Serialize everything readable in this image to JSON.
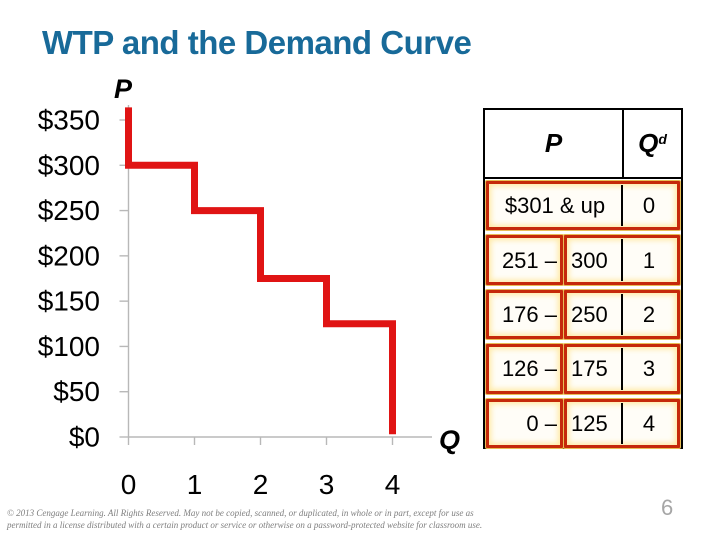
{
  "slide": {
    "title": "WTP and the Demand Curve",
    "page_number": "6",
    "footer_line1": "© 2013 Cengage Learning. All Rights Reserved. May not be copied, scanned, or duplicated, in whole or in part, except for use as",
    "footer_line2": "permitted in a license distributed with a certain product or service or otherwise on a password-protected website for classroom use."
  },
  "chart_data": {
    "type": "line",
    "subtype": "step-demand-curve",
    "x_axis_label": "Q",
    "y_axis_label": "P",
    "x_ticks": [
      0,
      1,
      2,
      3,
      4
    ],
    "y_ticks": [
      {
        "label": "$350",
        "value": 350
      },
      {
        "label": "$300",
        "value": 300
      },
      {
        "label": "$250",
        "value": 250
      },
      {
        "label": "$200",
        "value": 200
      },
      {
        "label": "$150",
        "value": 150
      },
      {
        "label": "$100",
        "value": 100
      },
      {
        "label": "$50",
        "value": 50
      },
      {
        "label": "$0",
        "value": 0
      }
    ],
    "xlim": [
      0,
      4.6
    ],
    "ylim": [
      0,
      375
    ],
    "grid": false,
    "legend": false,
    "series": [
      {
        "name": "demand-steps",
        "color": "#e01414",
        "points": [
          [
            0,
            364
          ],
          [
            0,
            300
          ],
          [
            1,
            300
          ],
          [
            1,
            250
          ],
          [
            2,
            250
          ],
          [
            2,
            175
          ],
          [
            3,
            175
          ],
          [
            3,
            125
          ],
          [
            4,
            125
          ],
          [
            4,
            3
          ]
        ]
      }
    ]
  },
  "table": {
    "headers": {
      "p": "P",
      "q_base": "Q",
      "q_sup": "d"
    },
    "rows": [
      {
        "p": "$301 & up",
        "qd": "0"
      },
      {
        "p_low": "251 –",
        "p_high": "300",
        "qd": "1"
      },
      {
        "p_low": "176 –",
        "p_high": "250",
        "qd": "2"
      },
      {
        "p_low": "126 –",
        "p_high": "175",
        "qd": "3"
      },
      {
        "p_low": "0 –",
        "p_high": "125",
        "qd": "4"
      }
    ]
  },
  "colors": {
    "title_blue": "#186a99",
    "curve_red": "#e01414",
    "box_border_red": "#c5290a",
    "box_glow_cream": "#ffe9a2",
    "axis_gray": "#b8b8b8"
  }
}
